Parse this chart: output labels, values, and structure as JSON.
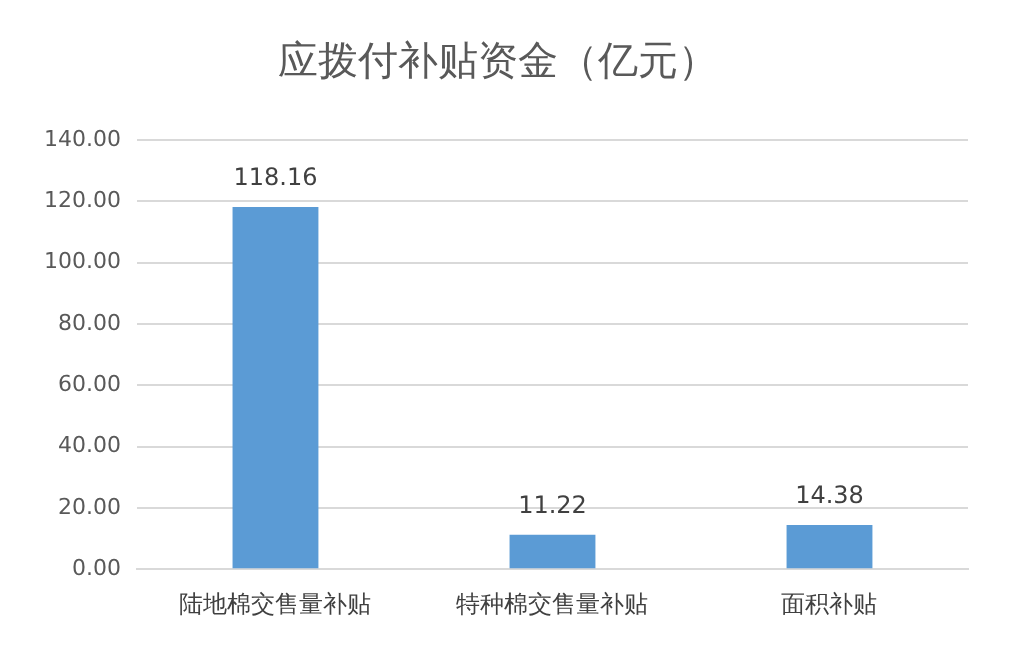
{
  "chart_data": {
    "type": "bar",
    "title": "应拨付补贴资金（亿元）",
    "categories": [
      "陆地棉交售量补贴",
      "特种棉交售量补贴",
      "面积补贴"
    ],
    "values": [
      118.16,
      11.22,
      14.38
    ],
    "color": "#5b9bd5",
    "ylim": [
      0,
      140
    ],
    "yticks": [
      {
        "value": 0,
        "label": "0.00"
      },
      {
        "value": 20,
        "label": "20.00"
      },
      {
        "value": 40,
        "label": "40.00"
      },
      {
        "value": 60,
        "label": "60.00"
      },
      {
        "value": 80,
        "label": "80.00"
      },
      {
        "value": 100,
        "label": "100.00"
      },
      {
        "value": 120,
        "label": "120.00"
      },
      {
        "value": 140,
        "label": "140.00"
      }
    ],
    "grid": "y",
    "data_labels": true,
    "legend": false
  }
}
